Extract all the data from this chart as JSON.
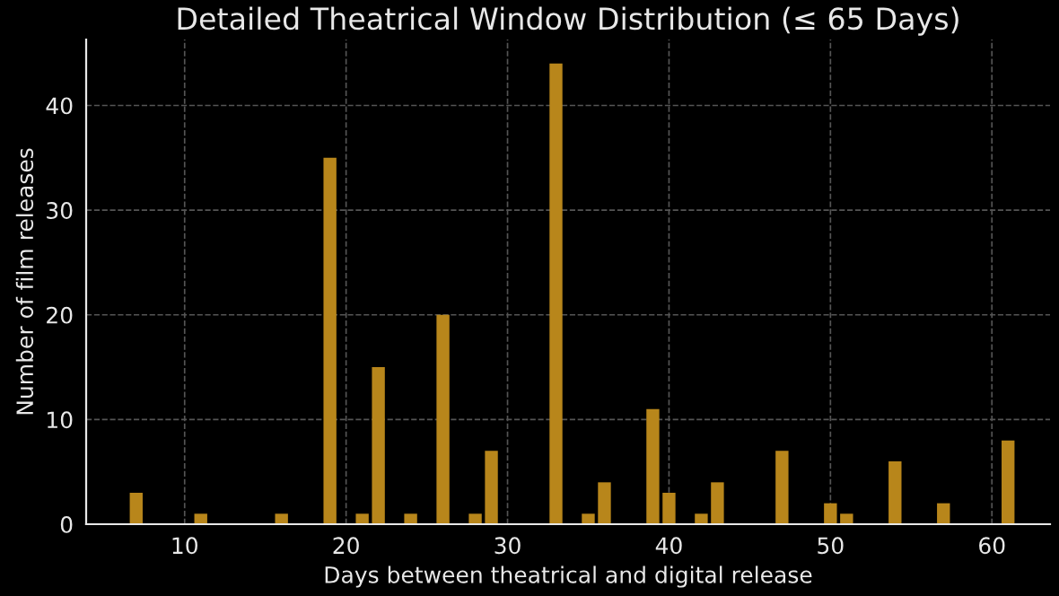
{
  "chart_data": {
    "type": "bar",
    "title": "Detailed Theatrical Window Distribution (≤ 65 Days)",
    "xlabel": "Days between theatrical and digital release",
    "ylabel": "Number of film releases",
    "x": [
      7,
      11,
      16,
      19,
      21,
      22,
      24,
      26,
      28,
      29,
      33,
      35,
      36,
      39,
      40,
      42,
      43,
      47,
      50,
      51,
      54,
      57,
      61
    ],
    "values": [
      3,
      1,
      1,
      35,
      1,
      15,
      1,
      20,
      1,
      7,
      44,
      1,
      4,
      11,
      3,
      1,
      4,
      7,
      2,
      1,
      6,
      2,
      8
    ],
    "color": "#b8861b",
    "xlim": [
      3.9,
      63.6
    ],
    "ylim": [
      0,
      46.3
    ],
    "xticks": [
      10,
      20,
      30,
      40,
      50,
      60
    ],
    "yticks": [
      0,
      10,
      20,
      30,
      40
    ],
    "grid": true
  }
}
